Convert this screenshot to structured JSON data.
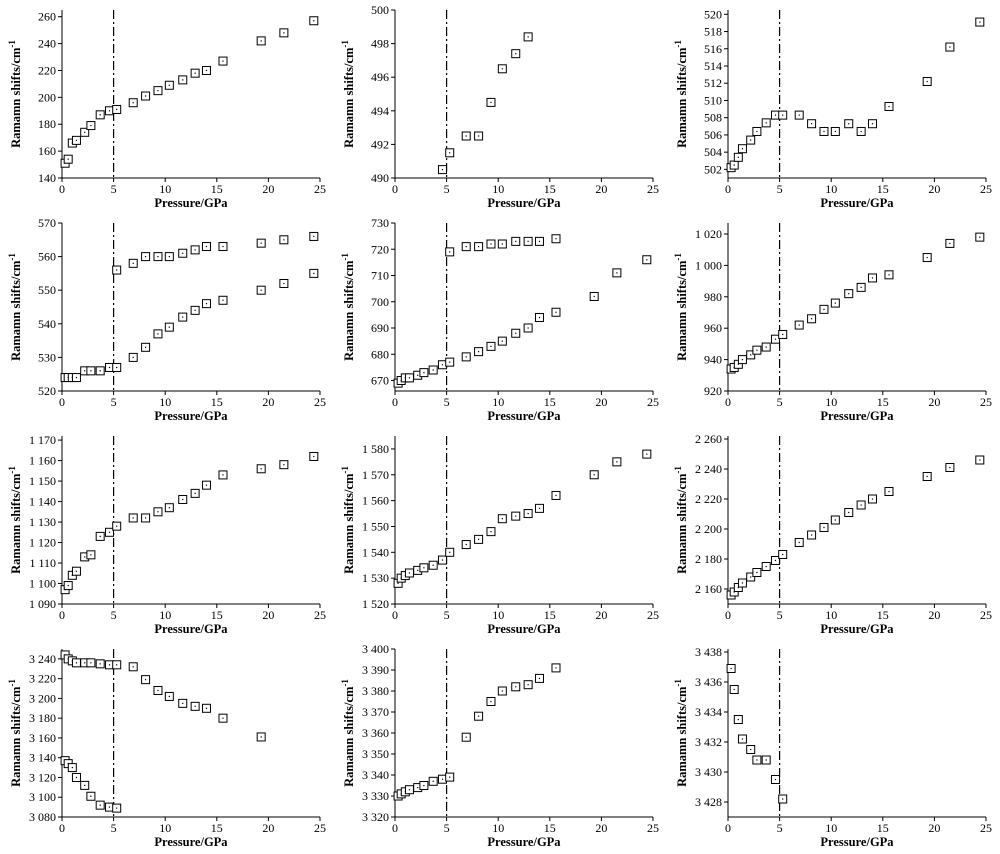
{
  "chart_data": [
    {
      "type": "scatter",
      "xlabel": "Pressure/GPa",
      "ylabel": "Ramamn shifts/cm",
      "ylabel_sup": "-1",
      "xlim": [
        0,
        25
      ],
      "xticks": [
        "0",
        "5",
        "10",
        "15",
        "20",
        "25"
      ],
      "ylim": [
        140,
        265
      ],
      "yticks": [
        140,
        160,
        180,
        200,
        220,
        240,
        260
      ],
      "ytick_labels": [
        "140",
        "160",
        "180",
        "200",
        "220",
        "240",
        "260"
      ],
      "vline": 5,
      "series": [
        {
          "x": [
            0.3,
            0.6,
            1.0,
            1.4,
            2.2,
            2.8,
            3.7,
            4.6,
            5.3,
            6.9,
            8.1,
            9.3,
            10.4,
            11.7,
            12.9,
            14.0,
            15.6,
            19.3,
            21.5,
            24.4
          ],
          "y": [
            151,
            154,
            166,
            168,
            174,
            179,
            187,
            190,
            191,
            196,
            201,
            205,
            209,
            213,
            218,
            220,
            227,
            242,
            248,
            257
          ]
        }
      ]
    },
    {
      "type": "scatter",
      "xlabel": "Pressure/GPa",
      "ylabel": "Ramamn shifts/cm",
      "ylabel_sup": "-1",
      "xlim": [
        0,
        25
      ],
      "xticks": [
        "0",
        "5",
        "10",
        "15",
        "20",
        "25"
      ],
      "ylim": [
        490,
        500
      ],
      "yticks": [
        490,
        492,
        494,
        496,
        498,
        500
      ],
      "ytick_labels": [
        "490",
        "492",
        "494",
        "496",
        "498",
        "500"
      ],
      "vline": 5,
      "series": [
        {
          "x": [
            4.6,
            5.3,
            6.9,
            8.1,
            9.3,
            10.4,
            11.7,
            12.9
          ],
          "y": [
            490.5,
            491.5,
            492.5,
            492.5,
            494.5,
            496.5,
            497.4,
            498.4
          ]
        }
      ]
    },
    {
      "type": "scatter",
      "xlabel": "Pressure/GPa",
      "ylabel": "Ramamn shifts/cm",
      "ylabel_sup": "-1",
      "xlim": [
        0,
        25
      ],
      "xticks": [
        "0",
        "5",
        "10",
        "15",
        "20",
        "25"
      ],
      "ylim": [
        501,
        520.5
      ],
      "yticks": [
        502,
        504,
        506,
        508,
        510,
        512,
        514,
        516,
        518,
        520
      ],
      "ytick_labels": [
        "502",
        "504",
        "506",
        "508",
        "510",
        "512",
        "514",
        "516",
        "518",
        "520"
      ],
      "vline": 5,
      "series": [
        {
          "x": [
            0.3,
            0.6,
            1.0,
            1.4,
            2.2,
            2.8,
            3.7,
            4.6,
            5.3,
            6.9,
            8.1,
            9.3,
            10.4,
            11.7,
            12.9,
            14.0,
            15.6,
            19.3,
            21.5,
            24.4
          ],
          "y": [
            502.2,
            502.5,
            503.4,
            504.4,
            505.4,
            506.4,
            507.4,
            508.3,
            508.3,
            508.3,
            507.3,
            506.4,
            506.4,
            507.3,
            506.4,
            507.3,
            509.3,
            512.2,
            516.2,
            519.1
          ]
        }
      ]
    },
    {
      "type": "scatter",
      "xlabel": "Pressure/GPa",
      "ylabel": "Ramamn shifts/cm",
      "ylabel_sup": "-1",
      "xlim": [
        0,
        25
      ],
      "xticks": [
        "0",
        "5",
        "10",
        "15",
        "20",
        "25"
      ],
      "ylim": [
        520,
        570
      ],
      "yticks": [
        520,
        530,
        540,
        550,
        560,
        570
      ],
      "ytick_labels": [
        "520",
        "530",
        "540",
        "550",
        "560",
        "570"
      ],
      "vline": 5,
      "series": [
        {
          "x": [
            0.3,
            0.6,
            1.0,
            1.4,
            2.2,
            2.8,
            3.7,
            4.6,
            5.3,
            6.9,
            8.1,
            9.3,
            10.4,
            11.7,
            12.9,
            14.0,
            15.6,
            19.3,
            21.5,
            24.4
          ],
          "y": [
            524,
            524,
            524,
            524,
            526,
            526,
            526,
            527,
            527,
            530,
            533,
            537,
            539,
            542,
            544,
            546,
            547,
            550,
            552,
            555
          ]
        },
        {
          "x": [
            5.3,
            6.9,
            8.1,
            9.3,
            10.4,
            11.7,
            12.9,
            14.0,
            15.6,
            19.3,
            21.5,
            24.4
          ],
          "y": [
            556,
            558,
            560,
            560,
            560,
            561,
            562,
            563,
            563,
            564,
            565,
            566
          ]
        }
      ]
    },
    {
      "type": "scatter",
      "xlabel": "Pressure/GPa",
      "ylabel": "Ramamn shifts/cm",
      "ylabel_sup": "-1",
      "xlim": [
        0,
        25
      ],
      "xticks": [
        "0",
        "5",
        "10",
        "15",
        "20",
        "25"
      ],
      "ylim": [
        666,
        730
      ],
      "yticks": [
        670,
        680,
        690,
        700,
        710,
        720,
        730
      ],
      "ytick_labels": [
        "670",
        "680",
        "690",
        "700",
        "710",
        "720",
        "730"
      ],
      "vline": 5,
      "series": [
        {
          "x": [
            0.3,
            0.6,
            1.0,
            1.4,
            2.2,
            2.8,
            3.7,
            4.6,
            5.3,
            6.9,
            8.1,
            9.3,
            10.4,
            11.7,
            12.9,
            14.0,
            15.6,
            19.3,
            21.5,
            24.4
          ],
          "y": [
            669,
            670,
            671,
            671,
            672,
            673,
            674,
            676,
            677,
            679,
            681,
            683,
            685,
            688,
            690,
            694,
            696,
            702,
            711,
            716
          ]
        },
        {
          "x": [
            5.3,
            6.9,
            8.1,
            9.3,
            10.4,
            11.7,
            12.9,
            14.0,
            15.6
          ],
          "y": [
            719,
            721,
            721,
            722,
            722,
            723,
            723,
            723,
            724
          ]
        }
      ]
    },
    {
      "type": "scatter",
      "xlabel": "Pressure/GPa",
      "ylabel": "Ramamn shifts/cm",
      "ylabel_sup": "-1",
      "xlim": [
        0,
        25
      ],
      "xticks": [
        "0",
        "5",
        "10",
        "15",
        "20",
        "25"
      ],
      "ylim": [
        920,
        1027
      ],
      "yticks": [
        920,
        940,
        960,
        980,
        1000,
        1020
      ],
      "ytick_labels": [
        "920",
        "940",
        "960",
        "980",
        "1 000",
        "1 020"
      ],
      "vline": 5,
      "series": [
        {
          "x": [
            0.3,
            0.6,
            1.0,
            1.4,
            2.2,
            2.8,
            3.7,
            4.6,
            5.3,
            6.9,
            8.1,
            9.3,
            10.4,
            11.7,
            12.9,
            14.0,
            15.6,
            19.3,
            21.5,
            24.4
          ],
          "y": [
            934,
            935,
            937,
            940,
            943,
            946,
            948,
            953,
            956,
            962,
            966,
            972,
            976,
            982,
            986,
            992,
            994,
            1005,
            1014,
            1018
          ]
        }
      ]
    },
    {
      "type": "scatter",
      "xlabel": "Pressure/GPa",
      "ylabel": "Ramamn shifts/cm",
      "ylabel_sup": "-1",
      "xlim": [
        0,
        25
      ],
      "xticks": [
        "0",
        "5",
        "10",
        "15",
        "20",
        "25"
      ],
      "ylim": [
        1090,
        1172
      ],
      "yticks": [
        1090,
        1100,
        1110,
        1120,
        1130,
        1140,
        1150,
        1160,
        1170
      ],
      "ytick_labels": [
        "1 090",
        "1 100",
        "1 110",
        "1 120",
        "1 130",
        "1 140",
        "1 150",
        "1 160",
        "1 170"
      ],
      "vline": 5,
      "series": [
        {
          "x": [
            0.3,
            0.6,
            1.0,
            1.4,
            2.2,
            2.8,
            3.7,
            4.6,
            5.3,
            6.9,
            8.1,
            9.3,
            10.4,
            11.7,
            12.9,
            14.0,
            15.6,
            19.3,
            21.5,
            24.4
          ],
          "y": [
            1097,
            1099,
            1104,
            1106,
            1113,
            1114,
            1123,
            1125,
            1128,
            1132,
            1132,
            1135,
            1137,
            1141,
            1144,
            1148,
            1153,
            1156,
            1158,
            1162
          ]
        }
      ]
    },
    {
      "type": "scatter",
      "xlabel": "Pressure/GPa",
      "ylabel": "Ramamn shifts/cm",
      "ylabel_sup": "-1",
      "xlim": [
        0,
        25
      ],
      "xticks": [
        "0",
        "5",
        "10",
        "15",
        "20",
        "25"
      ],
      "ylim": [
        1520,
        1585
      ],
      "yticks": [
        1520,
        1530,
        1540,
        1550,
        1560,
        1570,
        1580
      ],
      "ytick_labels": [
        "1 520",
        "1 530",
        "1 540",
        "1 550",
        "1 560",
        "1 570",
        "1 580"
      ],
      "vline": 5,
      "series": [
        {
          "x": [
            0.3,
            0.6,
            1.0,
            1.4,
            2.2,
            2.8,
            3.7,
            4.6,
            5.3,
            6.9,
            8.1,
            9.3,
            10.4,
            11.7,
            12.9,
            14.0,
            15.6,
            19.3,
            21.5,
            24.4
          ],
          "y": [
            1528,
            1530,
            1531,
            1532,
            1533,
            1534,
            1535,
            1537,
            1540,
            1543,
            1545,
            1548,
            1553,
            1554,
            1555,
            1557,
            1562,
            1570,
            1575,
            1578
          ]
        }
      ]
    },
    {
      "type": "scatter",
      "xlabel": "Pressure/GPa",
      "ylabel": "Ramamn shifts/cm",
      "ylabel_sup": "-1",
      "xlim": [
        0,
        25
      ],
      "xticks": [
        "0",
        "5",
        "10",
        "15",
        "20",
        "25"
      ],
      "ylim": [
        2150,
        2262
      ],
      "yticks": [
        2160,
        2180,
        2200,
        2220,
        2240,
        2260
      ],
      "ytick_labels": [
        "2 160",
        "2 180",
        "2 200",
        "2 220",
        "2 240",
        "2 260"
      ],
      "vline": 5,
      "series": [
        {
          "x": [
            0.3,
            0.6,
            1.0,
            1.4,
            2.2,
            2.8,
            3.7,
            4.6,
            5.3,
            6.9,
            8.1,
            9.3,
            10.4,
            11.7,
            12.9,
            14.0,
            15.6,
            19.3,
            21.5,
            24.4
          ],
          "y": [
            2156,
            2158,
            2161,
            2164,
            2168,
            2171,
            2175,
            2179,
            2183,
            2191,
            2196,
            2201,
            2206,
            2211,
            2216,
            2220,
            2225,
            2235,
            2241,
            2246
          ]
        }
      ]
    },
    {
      "type": "scatter",
      "xlabel": "Pressure/GPa",
      "ylabel": "Ramamn shifts/cm",
      "ylabel_sup": "-1",
      "xlim": [
        0,
        25
      ],
      "xticks": [
        "0",
        "5",
        "10",
        "15",
        "20",
        "25"
      ],
      "ylim": [
        3080,
        3250
      ],
      "yticks": [
        3080,
        3100,
        3120,
        3140,
        3160,
        3180,
        3200,
        3220,
        3240
      ],
      "ytick_labels": [
        "3 080",
        "3 100",
        "3 120",
        "3 140",
        "3 160",
        "3 180",
        "3 200",
        "3 220",
        "3 240"
      ],
      "vline": 5,
      "series": [
        {
          "x": [
            0.3,
            0.6,
            1.0,
            1.4,
            2.2,
            2.8,
            3.7,
            4.6,
            5.3,
            6.9,
            8.1,
            9.3,
            10.4,
            11.7,
            12.9,
            14.0,
            15.6,
            19.3
          ],
          "y": [
            3244,
            3240,
            3238,
            3236,
            3236,
            3236,
            3235,
            3234,
            3234,
            3232,
            3219,
            3208,
            3202,
            3195,
            3192,
            3190,
            3180,
            3161
          ]
        },
        {
          "x": [
            0.3,
            0.6,
            1.0,
            1.4,
            2.2,
            2.8,
            3.7,
            4.6,
            5.3
          ],
          "y": [
            3137,
            3134,
            3130,
            3120,
            3112,
            3101,
            3092,
            3090,
            3089
          ]
        }
      ]
    },
    {
      "type": "scatter",
      "xlabel": "Pressure/GPa",
      "ylabel": "Ramamn shifts/cm",
      "ylabel_sup": "-1",
      "xlim": [
        0,
        25
      ],
      "xticks": [
        "0",
        "5",
        "10",
        "15",
        "20",
        "25"
      ],
      "ylim": [
        3320,
        3400
      ],
      "yticks": [
        3320,
        3330,
        3340,
        3350,
        3360,
        3370,
        3380,
        3390,
        3400
      ],
      "ytick_labels": [
        "3 320",
        "3 330",
        "3 340",
        "3 350",
        "3 360",
        "3 370",
        "3 380",
        "3 390",
        "3 400"
      ],
      "vline": 5,
      "series": [
        {
          "x": [
            0.3,
            0.6,
            1.0,
            1.4,
            2.2,
            2.8,
            3.7,
            4.6,
            5.3,
            6.9,
            8.1,
            9.3,
            10.4,
            11.7,
            12.9,
            14.0,
            15.6
          ],
          "y": [
            3330,
            3331,
            3332,
            3333,
            3334,
            3335,
            3337,
            3338,
            3339,
            3358,
            3368,
            3375,
            3380,
            3382,
            3383,
            3386,
            3391
          ]
        }
      ]
    },
    {
      "type": "scatter",
      "xlabel": "Pressure/GPa",
      "ylabel": "Ramamn shifts/cm",
      "ylabel_sup": "-1",
      "xlim": [
        0,
        25
      ],
      "xticks": [
        "0",
        "5",
        "10",
        "15",
        "20",
        "25"
      ],
      "ylim": [
        3427,
        3438.2
      ],
      "yticks": [
        3428,
        3430,
        3432,
        3434,
        3436,
        3438
      ],
      "ytick_labels": [
        "3 428",
        "3 430",
        "3 432",
        "3 434",
        "3 436",
        "3 438"
      ],
      "vline": 5,
      "series": [
        {
          "x": [
            0.3,
            0.6,
            1.0,
            1.4,
            2.2,
            2.8,
            3.7,
            4.6,
            5.3
          ],
          "y": [
            3436.9,
            3435.5,
            3433.5,
            3432.2,
            3431.5,
            3430.8,
            3430.8,
            3429.5,
            3428.2
          ]
        }
      ]
    }
  ]
}
